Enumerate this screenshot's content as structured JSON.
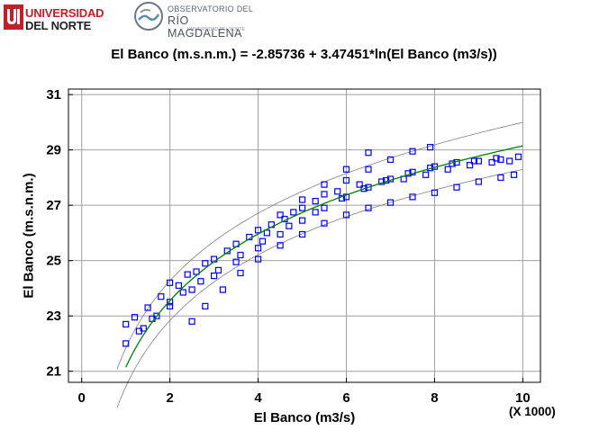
{
  "header": {
    "logo_university_line1": "UNIVERSIDAD",
    "logo_university_line2": "DEL NORTE",
    "logo_observatory_line1": "OBSERVATORIO DEL",
    "logo_observatory_line2": "RÍO MAGDALENA",
    "logo_observatory_line3": "UNIVERSIDAD DEL NORTE"
  },
  "chart_data": {
    "type": "scatter",
    "title": "El Banco (m.s.n.m.) = -2.85736 + 3.47451*ln(El Banco (m3/s))",
    "xlabel": "El Banco (m3/s)",
    "ylabel": "El Banco (m.s.n.m.)",
    "x_scale_note": "(X 1000)",
    "xlim": [
      -0.3,
      10.4
    ],
    "ylim": [
      20.6,
      31.2
    ],
    "x_ticks": [
      "0",
      "2",
      "4",
      "6",
      "8",
      "10"
    ],
    "y_ticks": [
      "21",
      "23",
      "25",
      "27",
      "29",
      "31"
    ],
    "grid": true,
    "fit": {
      "intercept": -2.85736,
      "slope": 3.47451,
      "x_multiplier": 1000,
      "x_range": [
        1.0,
        10.0
      ],
      "color": "#008000"
    },
    "bands": {
      "offset_at_x1": 0.7,
      "offset_at_x10": 0.85,
      "x_range": [
        0.8,
        10.0
      ],
      "color": "#7f7f7f"
    },
    "series": [
      {
        "marker": "open-square",
        "color": "#0000ff",
        "values": [
          [
            1.0,
            22.7
          ],
          [
            1.2,
            22.95
          ],
          [
            1.5,
            23.3
          ],
          [
            1.8,
            23.7
          ],
          [
            2.2,
            24.1
          ],
          [
            2.6,
            24.6
          ],
          [
            3.0,
            25.05
          ],
          [
            3.5,
            25.6
          ],
          [
            4.0,
            26.1
          ],
          [
            4.5,
            26.65
          ],
          [
            5.0,
            27.2
          ],
          [
            5.5,
            27.75
          ],
          [
            6.0,
            28.3
          ],
          [
            6.5,
            28.9
          ],
          [
            4.2,
            26.0
          ],
          [
            4.6,
            26.5
          ],
          [
            5.0,
            26.9
          ],
          [
            5.5,
            27.4
          ],
          [
            6.0,
            27.9
          ],
          [
            6.5,
            28.3
          ],
          [
            7.0,
            28.65
          ],
          [
            7.5,
            28.95
          ],
          [
            7.9,
            29.1
          ],
          [
            1.0,
            22.0
          ],
          [
            1.3,
            22.45
          ],
          [
            1.6,
            22.9
          ],
          [
            2.0,
            23.35
          ],
          [
            2.5,
            23.95
          ],
          [
            3.0,
            24.45
          ],
          [
            3.5,
            24.95
          ],
          [
            4.0,
            25.45
          ],
          [
            4.5,
            25.95
          ],
          [
            5.0,
            26.45
          ],
          [
            5.5,
            26.9
          ],
          [
            6.0,
            27.3
          ],
          [
            6.5,
            27.65
          ],
          [
            7.0,
            27.95
          ],
          [
            7.5,
            28.2
          ],
          [
            8.0,
            28.4
          ],
          [
            8.5,
            28.55
          ],
          [
            9.0,
            28.6
          ],
          [
            9.5,
            28.65
          ],
          [
            2.5,
            22.8
          ],
          [
            2.8,
            23.35
          ],
          [
            3.2,
            23.95
          ],
          [
            3.6,
            24.55
          ],
          [
            4.0,
            25.05
          ],
          [
            4.5,
            25.55
          ],
          [
            5.0,
            25.95
          ],
          [
            5.5,
            26.35
          ],
          [
            6.0,
            26.65
          ],
          [
            6.5,
            26.9
          ],
          [
            7.0,
            27.1
          ],
          [
            7.5,
            27.3
          ],
          [
            8.0,
            27.45
          ],
          [
            8.5,
            27.65
          ],
          [
            9.0,
            27.85
          ],
          [
            9.5,
            28.0
          ],
          [
            9.8,
            28.1
          ],
          [
            1.4,
            22.55
          ],
          [
            1.7,
            23.0
          ],
          [
            2.0,
            23.5
          ],
          [
            2.3,
            23.85
          ],
          [
            2.7,
            24.25
          ],
          [
            3.1,
            24.65
          ],
          [
            3.6,
            25.2
          ],
          [
            4.1,
            25.7
          ],
          [
            4.7,
            26.25
          ],
          [
            5.3,
            26.75
          ],
          [
            5.9,
            27.25
          ],
          [
            6.4,
            27.6
          ],
          [
            6.9,
            27.9
          ],
          [
            7.4,
            28.15
          ],
          [
            7.9,
            28.35
          ],
          [
            8.4,
            28.5
          ],
          [
            8.9,
            28.6
          ],
          [
            9.4,
            28.7
          ],
          [
            9.9,
            28.75
          ],
          [
            2.0,
            24.2
          ],
          [
            2.4,
            24.5
          ],
          [
            2.8,
            24.9
          ],
          [
            3.3,
            25.35
          ],
          [
            3.8,
            25.85
          ],
          [
            4.3,
            26.3
          ],
          [
            4.8,
            26.75
          ],
          [
            5.3,
            27.15
          ],
          [
            5.8,
            27.5
          ],
          [
            6.3,
            27.75
          ],
          [
            6.8,
            27.85
          ],
          [
            7.3,
            27.95
          ],
          [
            7.8,
            28.1
          ],
          [
            8.3,
            28.3
          ],
          [
            8.8,
            28.45
          ],
          [
            9.3,
            28.55
          ],
          [
            9.7,
            28.6
          ]
        ]
      }
    ]
  }
}
